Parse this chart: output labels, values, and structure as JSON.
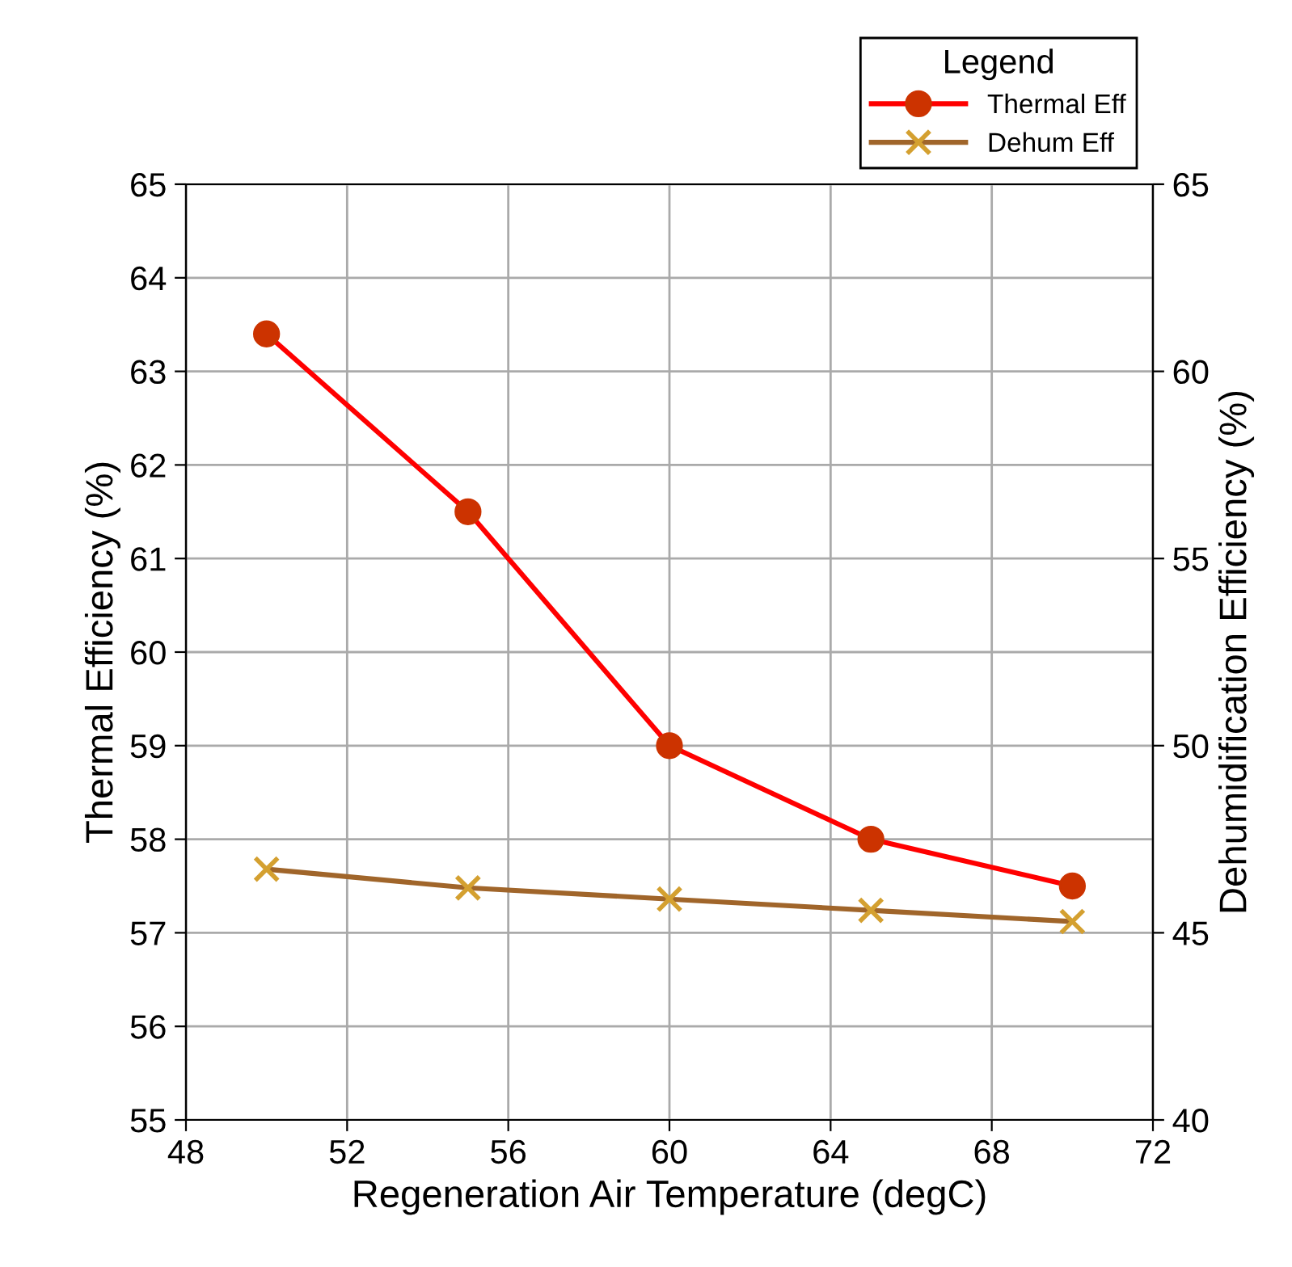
{
  "chart_data": {
    "type": "line",
    "xlabel": "Regeneration Air Temperature (degC)",
    "ylabel": "Thermal Efficiency (%)",
    "y2label": "Dehumidification Efficiency (%)",
    "legend_title": "Legend",
    "x": [
      50,
      55,
      60,
      65,
      70
    ],
    "series": [
      {
        "name": "Thermal Eff",
        "color": "#ff0000",
        "marker": "circle",
        "values": [
          63.4,
          61.5,
          59.0,
          58.0,
          57.5
        ]
      },
      {
        "name": "Dehum Eff",
        "color": "#a0652a",
        "marker": "cross",
        "axis": "y2",
        "values": [
          46.7,
          46.2,
          45.9,
          45.6,
          45.3
        ]
      }
    ],
    "xlim": [
      48,
      72
    ],
    "xticks": [
      48,
      52,
      56,
      60,
      64,
      68,
      72
    ],
    "ylim": [
      55,
      65
    ],
    "yticks": [
      55,
      56,
      57,
      58,
      59,
      60,
      61,
      62,
      63,
      64,
      65
    ],
    "y2lim": [
      40,
      65
    ],
    "y2ticks": [
      40,
      45,
      50,
      55,
      60,
      65
    ],
    "grid": true,
    "legend": "top right",
    "line_style": "solid"
  }
}
